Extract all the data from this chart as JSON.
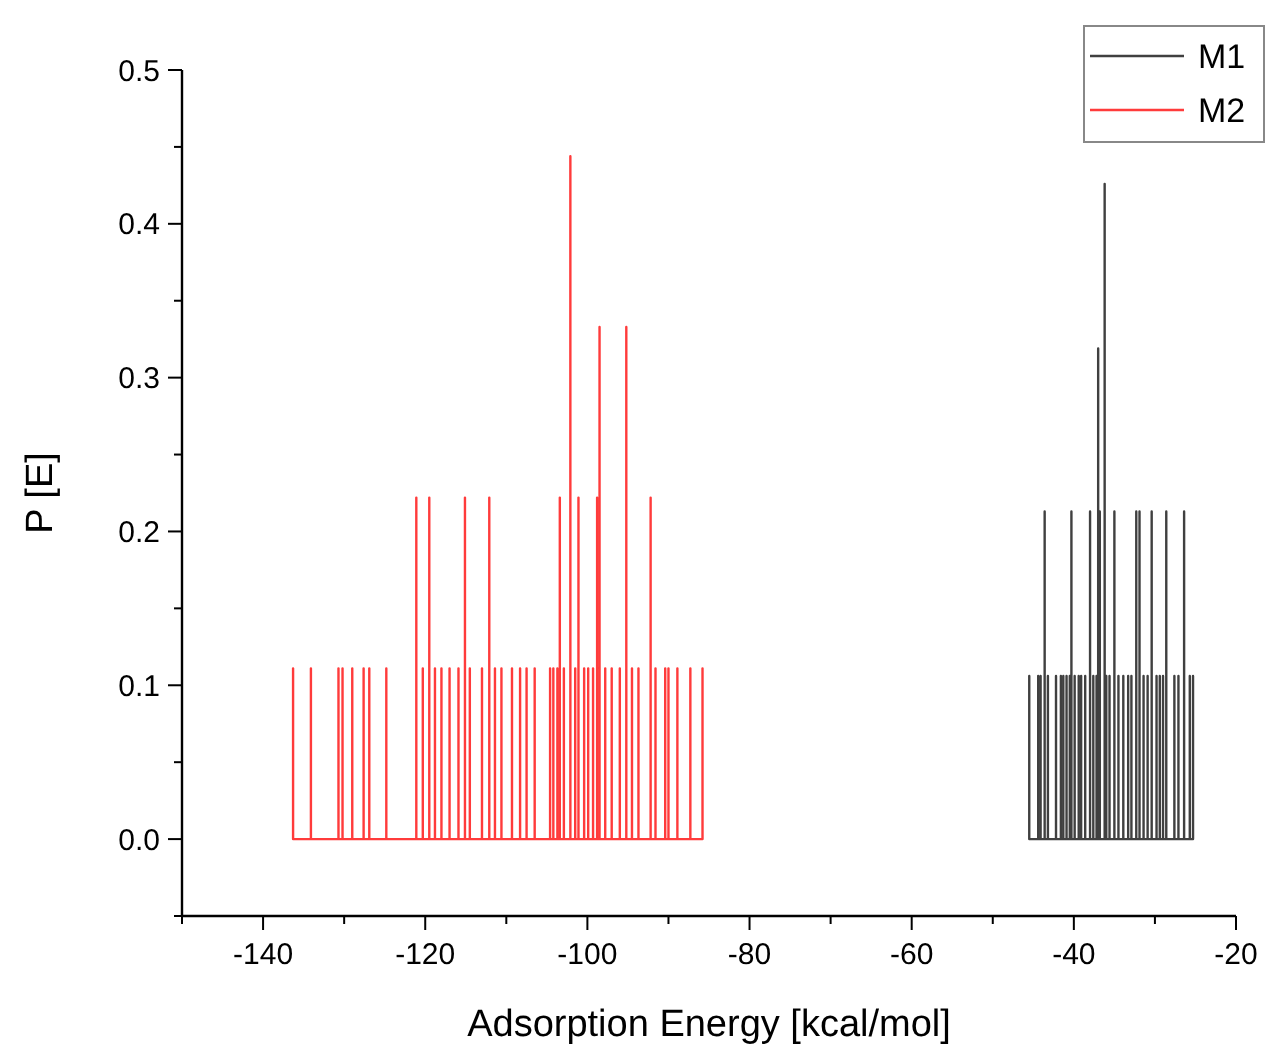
{
  "chart_data": {
    "type": "line",
    "xlabel": "Adsorption Energy [kcal/mol]",
    "ylabel": "P [E]",
    "xlim": [
      -150,
      -20
    ],
    "xticks": [
      {
        "value": -150,
        "label": null
      },
      -140,
      {
        "value": -130,
        "label": null
      },
      -120,
      {
        "value": -110,
        "label": null
      },
      -100,
      {
        "value": -90,
        "label": null
      },
      -80,
      {
        "value": -70,
        "label": null
      },
      -60,
      {
        "value": -50,
        "label": null
      },
      -40,
      {
        "value": -30,
        "label": null
      },
      -20
    ],
    "ylim": [
      -0.05,
      0.5
    ],
    "yticks": [
      {
        "value": -0.05,
        "label": null
      },
      {
        "value": 0,
        "label": "0.0"
      },
      {
        "value": 0.05,
        "label": null
      },
      0.1,
      {
        "value": 0.15,
        "label": null
      },
      0.2,
      {
        "value": 0.25,
        "label": null
      },
      0.3,
      {
        "value": 0.35,
        "label": null
      },
      0.4,
      {
        "value": 0.45,
        "label": null
      },
      0.5
    ],
    "grid": false,
    "legend": "top right",
    "marker": "none",
    "line_style": "solid",
    "series": [
      {
        "name": "M1",
        "color": "#404040",
        "x": [
          -45.5,
          -45.5,
          -45.5,
          -44.4,
          -44.4,
          -44.4,
          -44.1,
          -44.1,
          -44.1,
          -43.6,
          -43.6,
          -43.6,
          -43.2,
          -43.2,
          -43.2,
          -42.2,
          -42.2,
          -42.2,
          -41.6,
          -41.6,
          -41.6,
          -41.3,
          -41.3,
          -41.3,
          -40.9,
          -40.9,
          -40.9,
          -40.5,
          -40.5,
          -40.5,
          -40.3,
          -40.3,
          -40.3,
          -39.9,
          -39.9,
          -39.9,
          -39.4,
          -39.4,
          -39.4,
          -39.1,
          -39.1,
          -39.1,
          -38.6,
          -38.6,
          -38.6,
          -38.0,
          -38.0,
          -38.0,
          -37.6,
          -37.6,
          -37.6,
          -37.2,
          -37.2,
          -37.2,
          -37.0,
          -37.0,
          -37.0,
          -36.8,
          -36.8,
          -36.8,
          -36.2,
          -36.2,
          -36.2,
          -36.0,
          -36.0,
          -36.0,
          -35.6,
          -35.6,
          -35.6,
          -35.0,
          -35.0,
          -35.0,
          -34.5,
          -34.5,
          -34.5,
          -33.9,
          -33.9,
          -33.9,
          -33.3,
          -33.3,
          -33.3,
          -32.9,
          -32.9,
          -32.9,
          -32.3,
          -32.3,
          -32.3,
          -31.9,
          -31.9,
          -31.9,
          -31.4,
          -31.4,
          -31.4,
          -30.9,
          -30.9,
          -30.9,
          -30.4,
          -30.4,
          -30.4,
          -29.8,
          -29.8,
          -29.8,
          -29.4,
          -29.4,
          -29.4,
          -29.0,
          -29.0,
          -29.0,
          -28.6,
          -28.6,
          -28.6,
          -27.6,
          -27.6,
          -27.6,
          -27.1,
          -27.1,
          -27.1,
          -26.4,
          -26.4,
          -26.4,
          -25.7,
          -25.7,
          -25.7,
          -25.3,
          -25.3,
          -25.3
        ],
        "values": [
          0,
          0.106,
          0,
          0,
          0.106,
          0,
          0,
          0.106,
          0,
          0,
          0.213,
          0,
          0,
          0.106,
          0,
          0,
          0.106,
          0,
          0,
          0.106,
          0,
          0,
          0.106,
          0,
          0,
          0.106,
          0,
          0,
          0.106,
          0,
          0,
          0.213,
          0,
          0,
          0.106,
          0,
          0,
          0.106,
          0,
          0,
          0.106,
          0,
          0,
          0.106,
          0,
          0,
          0.213,
          0,
          0,
          0.106,
          0,
          0,
          0.106,
          0,
          0,
          0.319,
          0,
          0,
          0.213,
          0,
          0,
          0.426,
          0,
          0,
          0.106,
          0,
          0,
          0.106,
          0,
          0,
          0.213,
          0,
          0,
          0.106,
          0,
          0,
          0.106,
          0,
          0,
          0.106,
          0,
          0,
          0.106,
          0,
          0,
          0.213,
          0,
          0,
          0.213,
          0,
          0,
          0.106,
          0,
          0,
          0.106,
          0,
          0,
          0.213,
          0,
          0,
          0.106,
          0,
          0,
          0.106,
          0,
          0,
          0.106,
          0,
          0,
          0.213,
          0,
          0,
          0.106,
          0,
          0,
          0.106,
          0,
          0,
          0.213,
          0,
          0,
          0.106,
          0,
          0,
          0.106,
          0
        ]
      },
      {
        "name": "M2",
        "color": "#ff3b3b",
        "x": [
          -136.3,
          -136.3,
          -136.3,
          -134.1,
          -134.1,
          -134.1,
          -130.7,
          -130.7,
          -130.7,
          -130.2,
          -130.2,
          -130.2,
          -129.0,
          -129.0,
          -129.0,
          -127.6,
          -127.6,
          -127.6,
          -126.9,
          -126.9,
          -126.9,
          -124.8,
          -124.8,
          -124.8,
          -121.1,
          -121.1,
          -121.1,
          -120.3,
          -120.3,
          -120.3,
          -119.5,
          -119.5,
          -119.5,
          -118.8,
          -118.8,
          -118.8,
          -118.0,
          -118.0,
          -118.0,
          -117.0,
          -117.0,
          -117.0,
          -115.9,
          -115.9,
          -115.9,
          -115.1,
          -115.1,
          -115.1,
          -114.5,
          -114.5,
          -114.5,
          -113.0,
          -113.0,
          -113.0,
          -112.1,
          -112.1,
          -112.1,
          -111.4,
          -111.4,
          -111.4,
          -110.6,
          -110.6,
          -110.6,
          -109.3,
          -109.3,
          -109.3,
          -108.3,
          -108.3,
          -108.3,
          -107.5,
          -107.5,
          -107.5,
          -106.5,
          -106.5,
          -106.5,
          -104.6,
          -104.6,
          -104.6,
          -104.2,
          -104.2,
          -104.2,
          -103.7,
          -103.7,
          -103.7,
          -103.4,
          -103.4,
          -103.4,
          -102.9,
          -102.9,
          -102.9,
          -102.1,
          -102.1,
          -102.1,
          -101.5,
          -101.5,
          -101.5,
          -101.1,
          -101.1,
          -101.1,
          -100.4,
          -100.4,
          -100.4,
          -99.9,
          -99.9,
          -99.9,
          -99.3,
          -99.3,
          -99.3,
          -98.8,
          -98.8,
          -98.8,
          -98.5,
          -98.5,
          -98.5,
          -97.8,
          -97.8,
          -97.8,
          -97.0,
          -97.0,
          -97.0,
          -96.0,
          -96.0,
          -96.0,
          -95.2,
          -95.2,
          -95.2,
          -94.5,
          -94.5,
          -94.5,
          -93.7,
          -93.7,
          -93.7,
          -92.2,
          -92.2,
          -92.2,
          -91.6,
          -91.6,
          -91.6,
          -90.4,
          -90.4,
          -90.4,
          -90.0,
          -90.0,
          -90.0,
          -88.9,
          -88.9,
          -88.9,
          -87.3,
          -87.3,
          -87.3,
          -85.8,
          -85.8,
          -85.8
        ],
        "values": [
          0,
          0.111,
          0,
          0,
          0.111,
          0,
          0,
          0.111,
          0,
          0,
          0.111,
          0,
          0,
          0.111,
          0,
          0,
          0.111,
          0,
          0,
          0.111,
          0,
          0,
          0.111,
          0,
          0,
          0.222,
          0,
          0,
          0.111,
          0,
          0,
          0.222,
          0,
          0,
          0.111,
          0,
          0,
          0.111,
          0,
          0,
          0.111,
          0,
          0,
          0.111,
          0,
          0,
          0.222,
          0,
          0,
          0.111,
          0,
          0,
          0.111,
          0,
          0,
          0.222,
          0,
          0,
          0.111,
          0,
          0,
          0.111,
          0,
          0,
          0.111,
          0,
          0,
          0.111,
          0,
          0,
          0.111,
          0,
          0,
          0.111,
          0,
          0,
          0.111,
          0,
          0,
          0.111,
          0,
          0,
          0.111,
          0,
          0,
          0.222,
          0,
          0,
          0.111,
          0,
          0,
          0.444,
          0,
          0,
          0.111,
          0,
          0,
          0.222,
          0,
          0,
          0.111,
          0,
          0,
          0.111,
          0,
          0,
          0.111,
          0,
          0,
          0.222,
          0,
          0,
          0.333,
          0,
          0,
          0.111,
          0,
          0,
          0.111,
          0,
          0,
          0.111,
          0,
          0,
          0.333,
          0,
          0,
          0.111,
          0,
          0,
          0.111,
          0,
          0,
          0.222,
          0,
          0,
          0.111,
          0,
          0,
          0.111,
          0,
          0,
          0.111,
          0,
          0,
          0.111,
          0,
          0,
          0.111,
          0,
          0,
          0.111,
          0
        ]
      }
    ]
  }
}
